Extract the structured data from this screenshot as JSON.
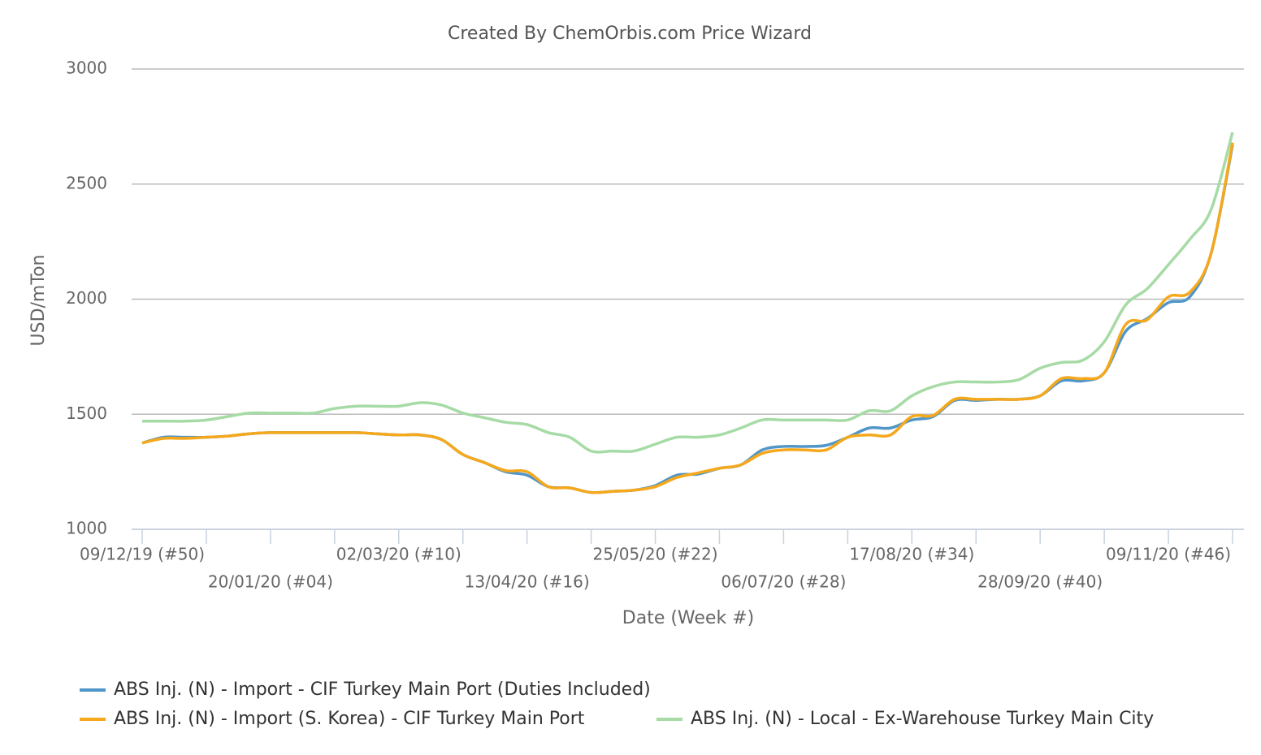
{
  "chart_data": {
    "type": "line",
    "title": "Created By ChemOrbis.com Price Wizard",
    "x_label": "Date (Week #)",
    "y_label": "USD/mTon",
    "categories": [
      "09/12/19 (#50)",
      null,
      null,
      null,
      null,
      null,
      "20/01/20 (#04)",
      null,
      null,
      null,
      null,
      null,
      "02/03/20 (#10)",
      null,
      null,
      null,
      null,
      null,
      "13/04/20 (#16)",
      null,
      null,
      null,
      null,
      null,
      "25/05/20 (#22)",
      null,
      null,
      null,
      null,
      null,
      "06/07/20 (#28)",
      null,
      null,
      null,
      null,
      null,
      "17/08/20 (#34)",
      null,
      null,
      null,
      null,
      null,
      "28/09/20 (#40)",
      null,
      null,
      null,
      null,
      null,
      "09/11/20 (#46)",
      null,
      null,
      null
    ],
    "series": [
      {
        "name": "ABS Inj. (N) - Import - CIF Turkey Main Port (Duties Included)",
        "color": "#5096c8",
        "values": [
          1375,
          1400,
          1400,
          1400,
          1405,
          1415,
          1420,
          1420,
          1420,
          1420,
          1420,
          1415,
          1410,
          1410,
          1390,
          1325,
          1290,
          1250,
          1235,
          1185,
          1180,
          1160,
          1165,
          1170,
          1190,
          1235,
          1240,
          1265,
          1280,
          1345,
          1360,
          1360,
          1365,
          1400,
          1440,
          1440,
          1475,
          1490,
          1560,
          1560,
          1565,
          1565,
          1580,
          1645,
          1645,
          1680,
          1860,
          1915,
          1985,
          2010,
          2200,
          2670
        ]
      },
      {
        "name": "ABS Inj. (N) - Import (S. Korea) - CIF Turkey Main Port",
        "color": "#f5a81c",
        "values": [
          1375,
          1395,
          1395,
          1400,
          1405,
          1415,
          1420,
          1420,
          1420,
          1420,
          1420,
          1415,
          1410,
          1410,
          1390,
          1325,
          1290,
          1255,
          1250,
          1185,
          1180,
          1160,
          1165,
          1170,
          1185,
          1225,
          1245,
          1265,
          1280,
          1330,
          1345,
          1345,
          1345,
          1400,
          1410,
          1410,
          1490,
          1495,
          1565,
          1565,
          1565,
          1565,
          1580,
          1655,
          1655,
          1680,
          1890,
          1910,
          2010,
          2030,
          2200,
          2680
        ]
      },
      {
        "name": "ABS Inj. (N) - Local - Ex-Warehouse Turkey Main City",
        "color": "#a6dba6",
        "values": [
          1470,
          1470,
          1470,
          1475,
          1490,
          1505,
          1505,
          1505,
          1505,
          1525,
          1535,
          1535,
          1535,
          1550,
          1540,
          1505,
          1485,
          1465,
          1455,
          1420,
          1400,
          1340,
          1340,
          1340,
          1370,
          1400,
          1400,
          1410,
          1440,
          1475,
          1475,
          1475,
          1475,
          1475,
          1515,
          1515,
          1580,
          1620,
          1640,
          1640,
          1640,
          1650,
          1700,
          1725,
          1735,
          1815,
          1975,
          2045,
          2150,
          2260,
          2390,
          2725
        ]
      }
    ],
    "ylim": [
      1000,
      3000
    ],
    "yticks": [
      1000,
      1500,
      2000,
      2500,
      3000
    ],
    "grid": true
  }
}
